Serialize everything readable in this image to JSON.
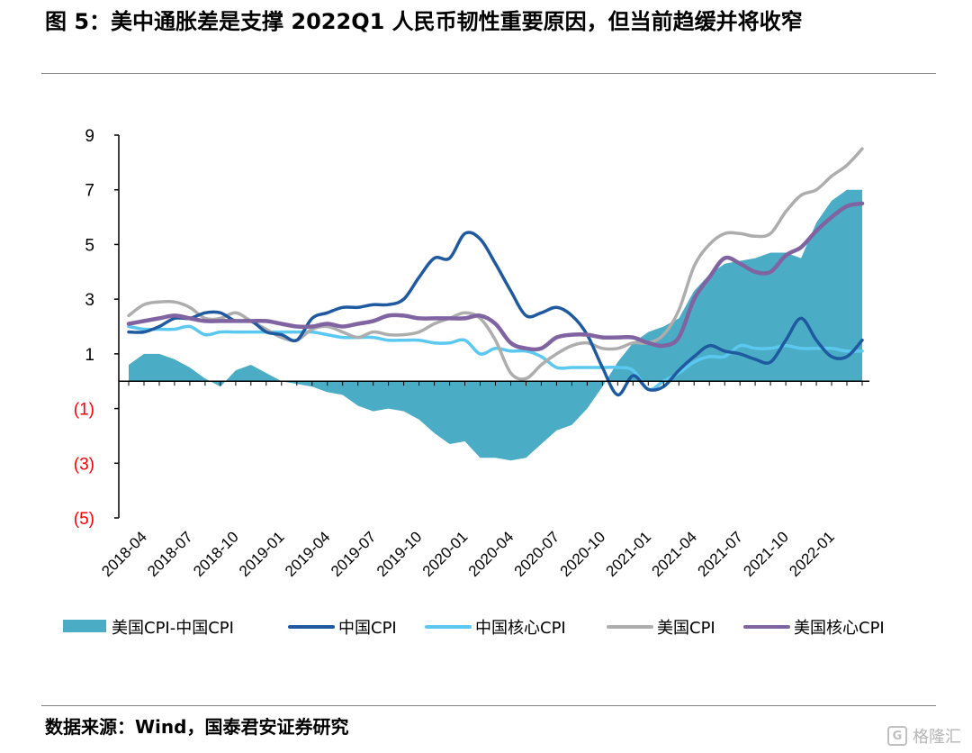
{
  "figure_title": "图 5：美中通胀差是支撑 2022Q1 人民币韧性重要原因，但当前趋缓并将收窄",
  "source": "数据来源：Wind，国泰君安证券研究",
  "watermark": {
    "text": "格隆汇",
    "logo_glyph": "G"
  },
  "colors": {
    "diff_area": "#4BACC6",
    "china_cpi": "#1F5AA0",
    "china_core": "#5BC8F0",
    "us_cpi": "#ADADAD",
    "us_core": "#8064A2",
    "negative_tick": "#FF0000",
    "axis": "#000000"
  },
  "chart_data": {
    "type": "line",
    "title": "",
    "xlabel": "",
    "ylabel": "",
    "ylim": [
      -5,
      9
    ],
    "yticks": [
      9,
      7,
      5,
      3,
      1,
      -1,
      -3,
      -5
    ],
    "ytick_labels": [
      "9",
      "7",
      "5",
      "3",
      "1",
      "(1)",
      "(3)",
      "(5)"
    ],
    "x_tick_labels": [
      "2018-04",
      "2018-07",
      "2018-10",
      "2019-01",
      "2019-04",
      "2019-07",
      "2019-10",
      "2020-01",
      "2020-04",
      "2020-07",
      "2020-10",
      "2021-01",
      "2021-04",
      "2021-07",
      "2021-10",
      "2022-01"
    ],
    "x": [
      "2018-03",
      "2018-04",
      "2018-05",
      "2018-06",
      "2018-07",
      "2018-08",
      "2018-09",
      "2018-10",
      "2018-11",
      "2018-12",
      "2019-01",
      "2019-02",
      "2019-03",
      "2019-04",
      "2019-05",
      "2019-06",
      "2019-07",
      "2019-08",
      "2019-09",
      "2019-10",
      "2019-11",
      "2019-12",
      "2020-01",
      "2020-02",
      "2020-03",
      "2020-04",
      "2020-05",
      "2020-06",
      "2020-07",
      "2020-08",
      "2020-09",
      "2020-10",
      "2020-11",
      "2020-12",
      "2021-01",
      "2021-02",
      "2021-03",
      "2021-04",
      "2021-05",
      "2021-06",
      "2021-07",
      "2021-08",
      "2021-09",
      "2021-10",
      "2021-11",
      "2021-12",
      "2022-01",
      "2022-02",
      "2022-03"
    ],
    "legend_position": "bottom",
    "series": [
      {
        "name": "美国CPI-中国CPI",
        "kind": "area",
        "values": [
          0.6,
          1.0,
          1.0,
          0.8,
          0.5,
          0.1,
          -0.2,
          0.4,
          0.6,
          0.3,
          0.0,
          -0.1,
          -0.2,
          -0.4,
          -0.5,
          -0.9,
          -1.1,
          -1.0,
          -1.1,
          -1.4,
          -1.9,
          -2.3,
          -2.2,
          -2.8,
          -2.8,
          -2.9,
          -2.8,
          -2.3,
          -1.8,
          -1.6,
          -1.0,
          -0.2,
          0.7,
          1.4,
          1.8,
          2.0,
          2.3,
          3.3,
          3.9,
          4.3,
          4.4,
          4.5,
          4.7,
          4.7,
          4.5,
          5.8,
          6.6,
          7.0,
          7.0
        ]
      },
      {
        "name": "中国CPI",
        "kind": "line",
        "values": [
          1.8,
          1.8,
          2.0,
          2.3,
          2.3,
          2.5,
          2.5,
          2.2,
          2.2,
          1.8,
          1.7,
          1.5,
          2.3,
          2.5,
          2.7,
          2.7,
          2.8,
          2.8,
          3.0,
          3.8,
          4.5,
          4.5,
          5.4,
          5.2,
          4.3,
          3.3,
          2.4,
          2.5,
          2.7,
          2.4,
          1.7,
          0.5,
          -0.5,
          0.2,
          -0.3,
          -0.2,
          0.4,
          0.9,
          1.3,
          1.1,
          1.0,
          0.8,
          0.7,
          1.5,
          2.3,
          1.5,
          0.9,
          0.9,
          1.5
        ]
      },
      {
        "name": "中国核心CPI",
        "kind": "line",
        "values": [
          2.0,
          1.9,
          1.9,
          1.9,
          2.0,
          1.7,
          1.8,
          1.8,
          1.8,
          1.8,
          1.8,
          1.8,
          1.8,
          1.7,
          1.6,
          1.6,
          1.6,
          1.5,
          1.5,
          1.5,
          1.4,
          1.4,
          1.5,
          1.0,
          1.2,
          1.1,
          1.1,
          0.9,
          0.5,
          0.5,
          0.5,
          0.5,
          0.5,
          0.4,
          -0.3,
          0.0,
          0.3,
          0.7,
          0.9,
          0.9,
          1.3,
          1.2,
          1.2,
          1.3,
          1.2,
          1.2,
          1.2,
          1.1,
          1.1
        ]
      },
      {
        "name": "美国CPI",
        "kind": "line",
        "values": [
          2.4,
          2.8,
          2.9,
          2.9,
          2.7,
          2.3,
          2.3,
          2.5,
          2.2,
          1.9,
          1.6,
          1.5,
          1.9,
          2.0,
          1.8,
          1.6,
          1.8,
          1.7,
          1.7,
          1.8,
          2.1,
          2.3,
          2.5,
          2.3,
          1.5,
          0.3,
          0.1,
          0.6,
          1.0,
          1.3,
          1.4,
          1.2,
          1.2,
          1.4,
          1.4,
          1.7,
          2.6,
          4.2,
          5.0,
          5.4,
          5.4,
          5.3,
          5.4,
          6.2,
          6.8,
          7.0,
          7.5,
          7.9,
          8.5
        ]
      },
      {
        "name": "美国核心CPI",
        "kind": "line",
        "values": [
          2.1,
          2.2,
          2.3,
          2.4,
          2.3,
          2.2,
          2.2,
          2.2,
          2.2,
          2.2,
          2.1,
          2.0,
          2.0,
          2.1,
          2.0,
          2.1,
          2.2,
          2.4,
          2.4,
          2.3,
          2.3,
          2.3,
          2.3,
          2.4,
          2.1,
          1.4,
          1.2,
          1.2,
          1.6,
          1.7,
          1.7,
          1.6,
          1.6,
          1.6,
          1.4,
          1.3,
          1.6,
          3.0,
          3.8,
          4.5,
          4.3,
          4.0,
          4.0,
          4.6,
          4.9,
          5.5,
          6.0,
          6.4,
          6.5
        ]
      }
    ]
  }
}
